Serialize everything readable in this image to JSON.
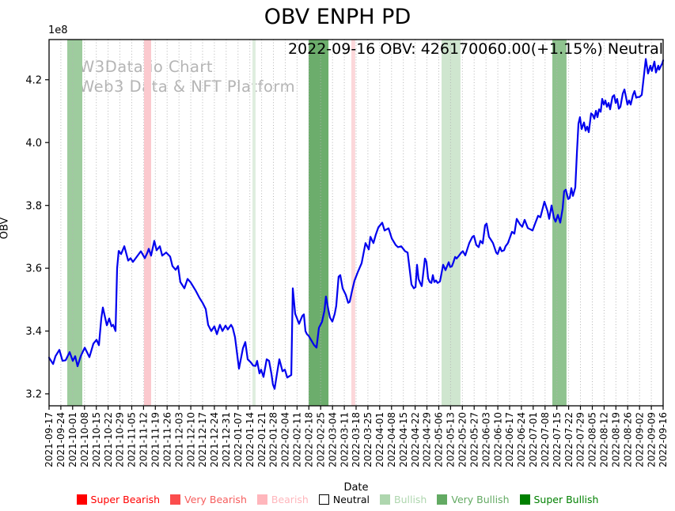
{
  "watermark": {
    "line1": "W3Data.io Chart",
    "line2": "Web3 Data & NFT Platform"
  },
  "chart_data": {
    "type": "line",
    "title": "OBV ENPH PD",
    "annotation": "2022-09-16 OBV: 426170060.00(+1.15%) Neutral",
    "xlabel": "Date",
    "ylabel": "OBV",
    "y_offset_label": "1e8",
    "line_color": "#0202ee",
    "grid_color": "#b3b3b3",
    "ylim": [
      3.162,
      4.328
    ],
    "y_ticks": [
      "3.2",
      "3.4",
      "3.6",
      "3.8",
      "4.0",
      "4.2"
    ],
    "y_tick_values": [
      3.2,
      3.4,
      3.6,
      3.8,
      4.0,
      4.2
    ],
    "x_tick_labels": [
      "2021-09-17",
      "2021-09-24",
      "2021-10-01",
      "2021-10-08",
      "2021-10-15",
      "2021-10-22",
      "2021-10-29",
      "2021-11-05",
      "2021-11-12",
      "2021-11-19",
      "2021-11-26",
      "2021-12-03",
      "2021-12-10",
      "2021-12-17",
      "2021-12-24",
      "2021-12-31",
      "2022-01-07",
      "2022-01-14",
      "2022-01-21",
      "2022-01-28",
      "2022-02-04",
      "2022-02-11",
      "2022-02-18",
      "2022-02-25",
      "2022-03-04",
      "2022-03-11",
      "2022-03-18",
      "2022-03-25",
      "2022-04-01",
      "2022-04-08",
      "2022-04-15",
      "2022-04-22",
      "2022-04-29",
      "2022-05-06",
      "2022-05-13",
      "2022-05-20",
      "2022-05-27",
      "2022-06-03",
      "2022-06-10",
      "2022-06-17",
      "2022-06-24",
      "2022-07-01",
      "2022-07-08",
      "2022-07-15",
      "2022-07-22",
      "2022-07-29",
      "2022-08-05",
      "2022-08-12",
      "2022-08-19",
      "2022-08-26",
      "2022-09-02",
      "2022-09-09",
      "2022-09-16"
    ],
    "series": [
      {
        "name": "OBV",
        "unit": "1e8",
        "points": [
          [
            0,
            3.315
          ],
          [
            0.34,
            3.295
          ],
          [
            0.54,
            3.32
          ],
          [
            0.87,
            3.34
          ],
          [
            1.14,
            3.305
          ],
          [
            1.41,
            3.307
          ],
          [
            1.74,
            3.333
          ],
          [
            2.01,
            3.305
          ],
          [
            2.21,
            3.32
          ],
          [
            2.41,
            3.288
          ],
          [
            2.68,
            3.32
          ],
          [
            3.02,
            3.347
          ],
          [
            3.42,
            3.317
          ],
          [
            3.75,
            3.36
          ],
          [
            4.02,
            3.372
          ],
          [
            4.22,
            3.355
          ],
          [
            4.42,
            3.44
          ],
          [
            4.56,
            3.475
          ],
          [
            4.89,
            3.418
          ],
          [
            5.09,
            3.44
          ],
          [
            5.29,
            3.415
          ],
          [
            5.43,
            3.42
          ],
          [
            5.63,
            3.4
          ],
          [
            5.76,
            3.6
          ],
          [
            5.9,
            3.655
          ],
          [
            6.1,
            3.645
          ],
          [
            6.37,
            3.67
          ],
          [
            6.7,
            3.624
          ],
          [
            6.9,
            3.632
          ],
          [
            7.1,
            3.62
          ],
          [
            7.44,
            3.637
          ],
          [
            7.77,
            3.654
          ],
          [
            8.11,
            3.632
          ],
          [
            8.31,
            3.648
          ],
          [
            8.44,
            3.662
          ],
          [
            8.64,
            3.64
          ],
          [
            8.91,
            3.687
          ],
          [
            9.11,
            3.657
          ],
          [
            9.38,
            3.67
          ],
          [
            9.58,
            3.64
          ],
          [
            9.92,
            3.65
          ],
          [
            10.25,
            3.637
          ],
          [
            10.45,
            3.607
          ],
          [
            10.72,
            3.595
          ],
          [
            10.92,
            3.607
          ],
          [
            11.12,
            3.556
          ],
          [
            11.46,
            3.536
          ],
          [
            11.73,
            3.566
          ],
          [
            11.99,
            3.555
          ],
          [
            12.4,
            3.53
          ],
          [
            12.73,
            3.506
          ],
          [
            13,
            3.49
          ],
          [
            13.27,
            3.47
          ],
          [
            13.47,
            3.42
          ],
          [
            13.74,
            3.4
          ],
          [
            14,
            3.415
          ],
          [
            14.21,
            3.39
          ],
          [
            14.47,
            3.42
          ],
          [
            14.68,
            3.4
          ],
          [
            14.94,
            3.417
          ],
          [
            15.14,
            3.405
          ],
          [
            15.41,
            3.42
          ],
          [
            15.55,
            3.41
          ],
          [
            15.75,
            3.38
          ],
          [
            15.95,
            3.32
          ],
          [
            16.08,
            3.28
          ],
          [
            16.42,
            3.345
          ],
          [
            16.62,
            3.365
          ],
          [
            16.82,
            3.31
          ],
          [
            17.09,
            3.3
          ],
          [
            17.29,
            3.29
          ],
          [
            17.49,
            3.289
          ],
          [
            17.62,
            3.305
          ],
          [
            17.82,
            3.265
          ],
          [
            17.96,
            3.277
          ],
          [
            18.16,
            3.254
          ],
          [
            18.43,
            3.31
          ],
          [
            18.63,
            3.305
          ],
          [
            18.83,
            3.264
          ],
          [
            18.96,
            3.23
          ],
          [
            19.1,
            3.216
          ],
          [
            19.3,
            3.264
          ],
          [
            19.5,
            3.31
          ],
          [
            19.77,
            3.272
          ],
          [
            19.97,
            3.277
          ],
          [
            20.17,
            3.252
          ],
          [
            20.51,
            3.26
          ],
          [
            20.64,
            3.536
          ],
          [
            20.84,
            3.455
          ],
          [
            20.97,
            3.443
          ],
          [
            21.17,
            3.423
          ],
          [
            21.44,
            3.448
          ],
          [
            21.58,
            3.453
          ],
          [
            21.71,
            3.4
          ],
          [
            21.84,
            3.39
          ],
          [
            21.98,
            3.385
          ],
          [
            22.18,
            3.372
          ],
          [
            22.45,
            3.355
          ],
          [
            22.65,
            3.347
          ],
          [
            22.85,
            3.41
          ],
          [
            23.12,
            3.43
          ],
          [
            23.32,
            3.465
          ],
          [
            23.45,
            3.51
          ],
          [
            23.65,
            3.468
          ],
          [
            23.79,
            3.443
          ],
          [
            23.99,
            3.43
          ],
          [
            24.19,
            3.455
          ],
          [
            24.32,
            3.48
          ],
          [
            24.52,
            3.573
          ],
          [
            24.66,
            3.578
          ],
          [
            24.86,
            3.536
          ],
          [
            25.13,
            3.515
          ],
          [
            25.33,
            3.49
          ],
          [
            25.46,
            3.493
          ],
          [
            25.66,
            3.528
          ],
          [
            25.86,
            3.56
          ],
          [
            26.13,
            3.586
          ],
          [
            26.47,
            3.616
          ],
          [
            26.8,
            3.68
          ],
          [
            27.07,
            3.66
          ],
          [
            27.21,
            3.7
          ],
          [
            27.47,
            3.68
          ],
          [
            27.67,
            3.707
          ],
          [
            27.88,
            3.73
          ],
          [
            28.21,
            3.745
          ],
          [
            28.41,
            3.72
          ],
          [
            28.75,
            3.727
          ],
          [
            29.02,
            3.695
          ],
          [
            29.35,
            3.674
          ],
          [
            29.55,
            3.667
          ],
          [
            29.82,
            3.67
          ],
          [
            30.15,
            3.654
          ],
          [
            30.36,
            3.65
          ],
          [
            30.56,
            3.59
          ],
          [
            30.69,
            3.548
          ],
          [
            30.89,
            3.536
          ],
          [
            31.03,
            3.54
          ],
          [
            31.16,
            3.611
          ],
          [
            31.29,
            3.566
          ],
          [
            31.43,
            3.553
          ],
          [
            31.56,
            3.543
          ],
          [
            31.83,
            3.631
          ],
          [
            31.96,
            3.62
          ],
          [
            32.1,
            3.568
          ],
          [
            32.23,
            3.556
          ],
          [
            32.37,
            3.553
          ],
          [
            32.5,
            3.578
          ],
          [
            32.63,
            3.556
          ],
          [
            32.77,
            3.561
          ],
          [
            32.9,
            3.553
          ],
          [
            33.1,
            3.558
          ],
          [
            33.37,
            3.611
          ],
          [
            33.57,
            3.594
          ],
          [
            33.84,
            3.619
          ],
          [
            33.97,
            3.604
          ],
          [
            34.11,
            3.606
          ],
          [
            34.24,
            3.619
          ],
          [
            34.38,
            3.636
          ],
          [
            34.51,
            3.631
          ],
          [
            34.71,
            3.64
          ],
          [
            34.91,
            3.65
          ],
          [
            35.04,
            3.654
          ],
          [
            35.25,
            3.641
          ],
          [
            35.58,
            3.68
          ],
          [
            35.85,
            3.7
          ],
          [
            35.98,
            3.703
          ],
          [
            36.18,
            3.674
          ],
          [
            36.38,
            3.667
          ],
          [
            36.52,
            3.687
          ],
          [
            36.72,
            3.679
          ],
          [
            36.92,
            3.737
          ],
          [
            37.05,
            3.742
          ],
          [
            37.25,
            3.7
          ],
          [
            37.39,
            3.692
          ],
          [
            37.59,
            3.68
          ],
          [
            37.86,
            3.65
          ],
          [
            37.99,
            3.645
          ],
          [
            38.19,
            3.667
          ],
          [
            38.33,
            3.654
          ],
          [
            38.53,
            3.657
          ],
          [
            38.66,
            3.67
          ],
          [
            38.86,
            3.68
          ],
          [
            39.2,
            3.716
          ],
          [
            39.4,
            3.71
          ],
          [
            39.6,
            3.757
          ],
          [
            39.87,
            3.74
          ],
          [
            40.07,
            3.732
          ],
          [
            40.27,
            3.754
          ],
          [
            40.54,
            3.728
          ],
          [
            40.74,
            3.724
          ],
          [
            40.94,
            3.72
          ],
          [
            41.14,
            3.74
          ],
          [
            41.41,
            3.767
          ],
          [
            41.61,
            3.762
          ],
          [
            41.95,
            3.812
          ],
          [
            42.21,
            3.782
          ],
          [
            42.35,
            3.757
          ],
          [
            42.55,
            3.8
          ],
          [
            42.75,
            3.76
          ],
          [
            42.89,
            3.748
          ],
          [
            43.09,
            3.77
          ],
          [
            43.29,
            3.745
          ],
          [
            43.49,
            3.79
          ],
          [
            43.62,
            3.845
          ],
          [
            43.76,
            3.85
          ],
          [
            43.96,
            3.82
          ],
          [
            44.09,
            3.824
          ],
          [
            44.23,
            3.855
          ],
          [
            44.36,
            3.83
          ],
          [
            44.56,
            3.857
          ],
          [
            44.7,
            3.97
          ],
          [
            44.83,
            4.06
          ],
          [
            44.96,
            4.081
          ],
          [
            45.1,
            4.043
          ],
          [
            45.3,
            4.064
          ],
          [
            45.43,
            4.038
          ],
          [
            45.57,
            4.051
          ],
          [
            45.7,
            4.033
          ],
          [
            45.9,
            4.093
          ],
          [
            46.04,
            4.088
          ],
          [
            46.17,
            4.076
          ],
          [
            46.31,
            4.101
          ],
          [
            46.44,
            4.081
          ],
          [
            46.57,
            4.106
          ],
          [
            46.71,
            4.098
          ],
          [
            46.84,
            4.139
          ],
          [
            46.98,
            4.121
          ],
          [
            47.11,
            4.134
          ],
          [
            47.24,
            4.114
          ],
          [
            47.38,
            4.126
          ],
          [
            47.51,
            4.106
          ],
          [
            47.71,
            4.146
          ],
          [
            47.85,
            4.151
          ],
          [
            47.98,
            4.126
          ],
          [
            48.11,
            4.139
          ],
          [
            48.25,
            4.108
          ],
          [
            48.38,
            4.114
          ],
          [
            48.58,
            4.156
          ],
          [
            48.72,
            4.169
          ],
          [
            48.85,
            4.146
          ],
          [
            48.98,
            4.121
          ],
          [
            49.12,
            4.134
          ],
          [
            49.25,
            4.121
          ],
          [
            49.45,
            4.152
          ],
          [
            49.58,
            4.164
          ],
          [
            49.72,
            4.143
          ],
          [
            49.85,
            4.145
          ],
          [
            49.99,
            4.145
          ],
          [
            50.19,
            4.152
          ],
          [
            50.53,
            4.266
          ],
          [
            50.72,
            4.22
          ],
          [
            50.92,
            4.245
          ],
          [
            51.05,
            4.228
          ],
          [
            51.26,
            4.258
          ],
          [
            51.39,
            4.223
          ],
          [
            51.59,
            4.245
          ],
          [
            51.66,
            4.232
          ],
          [
            51.93,
            4.253
          ],
          [
            52,
            4.2617
          ]
        ]
      }
    ],
    "bands": [
      {
        "from_week": 1.54,
        "to_week": 2.81,
        "label": "Very Bullish",
        "color": "#9ecc9e"
      },
      {
        "from_week": 8.04,
        "to_week": 8.64,
        "label": "Bearish",
        "color": "#fbc9ce"
      },
      {
        "from_week": 17.22,
        "to_week": 17.49,
        "label": "Bullish",
        "color": "#dfeedf"
      },
      {
        "from_week": 21.98,
        "to_week": 23.66,
        "label": "Very Bullish",
        "color": "#6cad6c"
      },
      {
        "from_week": 25.6,
        "to_week": 25.93,
        "label": "Bearish",
        "color": "#fcd7da"
      },
      {
        "from_week": 33.24,
        "to_week": 34.84,
        "label": "Bullish",
        "color": "#cfe6cf"
      },
      {
        "from_week": 42.62,
        "to_week": 43.82,
        "label": "Very Bullish",
        "color": "#8fc38f"
      }
    ],
    "legend": [
      {
        "label": "Super Bearish",
        "color": "#ff0000",
        "text_color": "#ff0000",
        "edge": "#ff0000"
      },
      {
        "label": "Very Bearish",
        "color": "#fb4d4d",
        "text_color": "#f65d5d",
        "edge": "#fb4d4d"
      },
      {
        "label": "Bearish",
        "color": "#ffb6bc",
        "text_color": "#ffb6bc",
        "edge": "#ffb6bc"
      },
      {
        "label": "Neutral",
        "color": "#ffffff",
        "text_color": "#000000",
        "edge": "#000000"
      },
      {
        "label": "Bullish",
        "color": "#aed6ae",
        "text_color": "#aed6ae",
        "edge": "#aed6ae"
      },
      {
        "label": "Very Bullish",
        "color": "#63aa63",
        "text_color": "#63aa63",
        "edge": "#63aa63"
      },
      {
        "label": "Super Bullish",
        "color": "#008000",
        "text_color": "#008000",
        "edge": "#008000"
      }
    ],
    "legend_position": "bottom-center",
    "grid": "vertical-dotted"
  }
}
